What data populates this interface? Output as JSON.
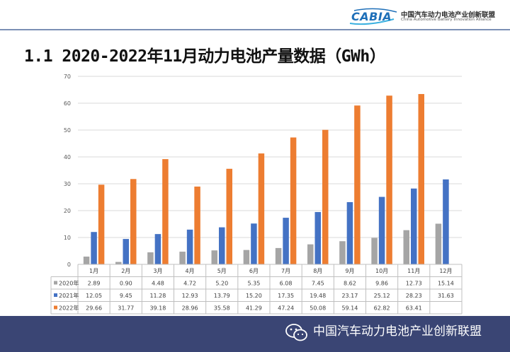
{
  "header": {
    "logo_mark": "CABIA",
    "org_cn": "中国汽车动力电池产业创新联盟",
    "org_en": "China Automotive Battery Innovation Alliance"
  },
  "title": "1.1 2020-2022年11月动力电池产量数据（GWh）",
  "colors": {
    "s2020": "#a5a5a5",
    "s2021": "#4472c4",
    "s2022": "#ed7d31",
    "grid": "#d9d9d9",
    "footer": "#3a4574"
  },
  "chart_data": {
    "type": "bar",
    "title": "2020-2022年11月动力电池产量数据（GWh）",
    "xlabel": "",
    "ylabel": "",
    "ylim": [
      0,
      70
    ],
    "yticks": [
      0,
      10,
      20,
      30,
      40,
      50,
      60,
      70
    ],
    "grid": true,
    "categories": [
      "1月",
      "2月",
      "3月",
      "4月",
      "5月",
      "6月",
      "7月",
      "8月",
      "9月",
      "10月",
      "11月",
      "12月"
    ],
    "series": [
      {
        "name": "2020年",
        "color": "#a5a5a5",
        "values": [
          2.89,
          0.9,
          4.48,
          4.72,
          5.2,
          5.35,
          6.08,
          7.45,
          8.62,
          9.86,
          12.73,
          15.14
        ],
        "labels": [
          "2.89",
          "0.90",
          "4.48",
          "4.72",
          "5.20",
          "5.35",
          "6.08",
          "7.45",
          "8.62",
          "9.86",
          "12.73",
          "15.14"
        ]
      },
      {
        "name": "2021年",
        "color": "#4472c4",
        "values": [
          12.05,
          9.45,
          11.28,
          12.93,
          13.79,
          15.2,
          17.35,
          19.48,
          23.17,
          25.12,
          28.23,
          31.63
        ],
        "labels": [
          "12.05",
          "9.45",
          "11.28",
          "12.93",
          "13.79",
          "15.20",
          "17.35",
          "19.48",
          "23.17",
          "25.12",
          "28.23",
          "31.63"
        ]
      },
      {
        "name": "2022年",
        "color": "#ed7d31",
        "values": [
          29.66,
          31.77,
          39.18,
          28.96,
          35.58,
          41.29,
          47.24,
          50.08,
          59.14,
          62.82,
          63.41,
          null
        ],
        "labels": [
          "29.66",
          "31.77",
          "39.18",
          "28.96",
          "35.58",
          "41.29",
          "47.24",
          "50.08",
          "59.14",
          "62.82",
          "63.41",
          ""
        ]
      }
    ]
  },
  "footer": {
    "text": "中国汽车动力电池产业创新联盟",
    "icon": "wechat-icon"
  }
}
